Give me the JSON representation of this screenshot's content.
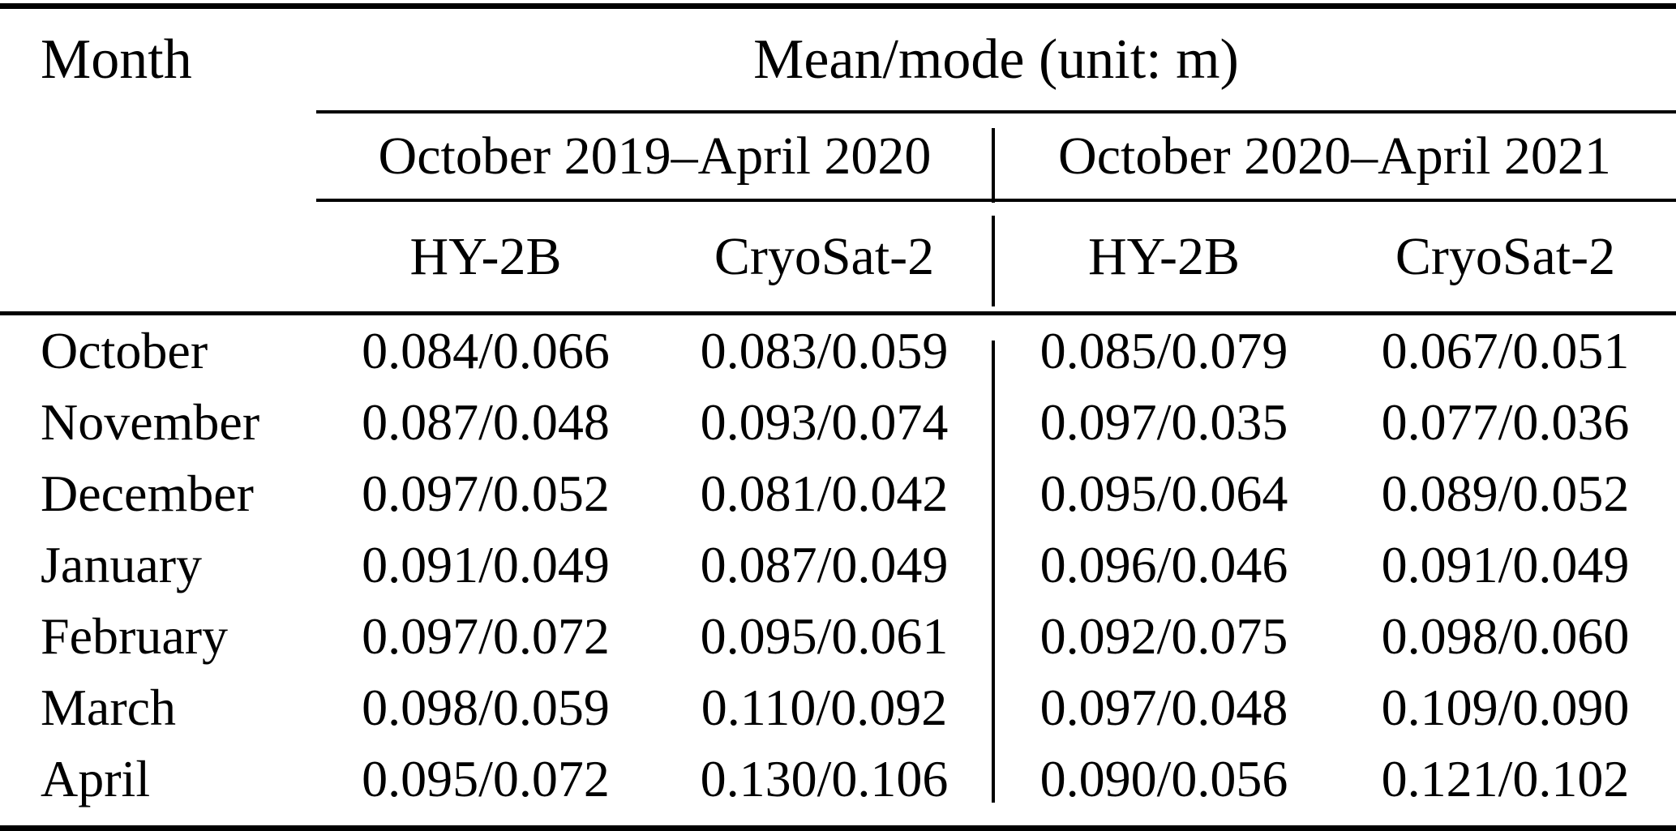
{
  "table": {
    "month_header": "Month",
    "value_header": "Mean/mode (unit: m)",
    "periods": [
      "October 2019–April 2020",
      "October 2020–April 2021"
    ],
    "satellites": [
      "HY-2B",
      "CryoSat-2",
      "HY-2B",
      "CryoSat-2"
    ],
    "rows": [
      {
        "month": "October",
        "values": [
          "0.084/0.066",
          "0.083/0.059",
          "0.085/0.079",
          "0.067/0.051"
        ]
      },
      {
        "month": "November",
        "values": [
          "0.087/0.048",
          "0.093/0.074",
          "0.097/0.035",
          "0.077/0.036"
        ]
      },
      {
        "month": "December",
        "values": [
          "0.097/0.052",
          "0.081/0.042",
          "0.095/0.064",
          "0.089/0.052"
        ]
      },
      {
        "month": "January",
        "values": [
          "0.091/0.049",
          "0.087/0.049",
          "0.096/0.046",
          "0.091/0.049"
        ]
      },
      {
        "month": "February",
        "values": [
          "0.097/0.072",
          "0.095/0.061",
          "0.092/0.075",
          "0.098/0.060"
        ]
      },
      {
        "month": "March",
        "values": [
          "0.098/0.059",
          "0.110/0.092",
          "0.097/0.048",
          "0.109/0.090"
        ]
      },
      {
        "month": "April",
        "values": [
          "0.095/0.072",
          "0.130/0.106",
          "0.090/0.056",
          "0.121/0.102"
        ]
      }
    ],
    "colors": {
      "text": "#000000",
      "background": "#ffffff",
      "rule": "#000000"
    }
  }
}
